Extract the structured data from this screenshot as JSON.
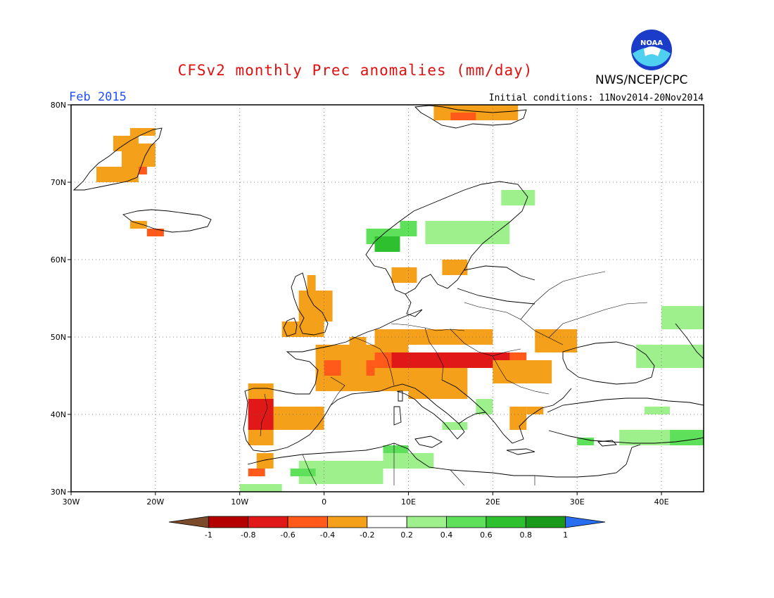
{
  "title": "CFSv2 monthly Prec anomalies (mm/day)",
  "valid_month": "Feb 2015",
  "initial_conditions": "Initial conditions: 11Nov2014-20Nov2014",
  "organization": "NWS/NCEP/CPC",
  "logo_text": "NOAA",
  "map": {
    "lon_range": [
      -30,
      45
    ],
    "lat_range": [
      30,
      80
    ],
    "lat_ticks": [
      {
        "value": 80,
        "label": "80N"
      },
      {
        "value": 70,
        "label": "70N"
      },
      {
        "value": 60,
        "label": "60N"
      },
      {
        "value": 50,
        "label": "50N"
      },
      {
        "value": 40,
        "label": "40N"
      },
      {
        "value": 30,
        "label": "30N"
      }
    ],
    "lon_ticks": [
      {
        "value": -30,
        "label": "30W"
      },
      {
        "value": -20,
        "label": "20W"
      },
      {
        "value": -10,
        "label": "10W"
      },
      {
        "value": 0,
        "label": "0"
      },
      {
        "value": 10,
        "label": "10E"
      },
      {
        "value": 20,
        "label": "20E"
      },
      {
        "value": 30,
        "label": "30E"
      },
      {
        "value": 40,
        "label": "40E"
      }
    ],
    "grid_lines": true
  },
  "colorbar": {
    "labels": [
      "-1",
      "-0.8",
      "-0.6",
      "-0.4",
      "-0.2",
      "0.2",
      "0.4",
      "0.6",
      "0.8",
      "1"
    ],
    "colors": [
      "#7a4a2a",
      "#b40000",
      "#e01818",
      "#ff5a1a",
      "#f5a01a",
      "#ffffff",
      "#9ef08c",
      "#5ee05a",
      "#2ec02e",
      "#1a9a1a",
      "#2a6ef0"
    ]
  },
  "colors": {
    "neg_02_04": "#f5a01a",
    "neg_04_06": "#ff5a1a",
    "neg_06_08": "#e01818",
    "neg_08_1": "#b40000",
    "pos_02_04": "#9ef08c",
    "pos_04_06": "#5ee05a",
    "pos_06_08": "#2ec02e"
  },
  "anomaly_regions": [
    {
      "level": "neg_02_04",
      "cells": [
        [
          -24,
          72,
          4,
          3
        ],
        [
          -25,
          74,
          3,
          2
        ],
        [
          -27,
          70,
          5,
          2
        ],
        [
          -23,
          64,
          2,
          1
        ],
        [
          -21,
          63,
          2,
          1
        ],
        [
          -23,
          76,
          3,
          1
        ]
      ]
    },
    {
      "level": "neg_04_06",
      "cells": [
        [
          -22,
          71,
          1,
          1
        ],
        [
          -21,
          63,
          2,
          1
        ]
      ]
    },
    {
      "level": "neg_02_04",
      "cells": [
        [
          13,
          78,
          10,
          2
        ]
      ]
    },
    {
      "level": "neg_04_06",
      "cells": [
        [
          15,
          78,
          3,
          1
        ]
      ]
    },
    {
      "level": "neg_02_04",
      "cells": [
        [
          -3,
          52,
          4,
          4
        ],
        [
          -5,
          50,
          5,
          2
        ],
        [
          -2,
          56,
          1,
          2
        ]
      ]
    },
    {
      "level": "neg_02_04",
      "cells": [
        [
          8,
          57,
          3,
          2
        ],
        [
          14,
          58,
          3,
          2
        ]
      ]
    },
    {
      "level": "neg_02_04",
      "cells": [
        [
          -1,
          43,
          11,
          6
        ],
        [
          6,
          49,
          14,
          2
        ],
        [
          3,
          48,
          2,
          2
        ]
      ]
    },
    {
      "level": "neg_04_06",
      "cells": [
        [
          0,
          45,
          2,
          2
        ],
        [
          5,
          45,
          1,
          2
        ]
      ]
    },
    {
      "level": "neg_04_06",
      "cells": [
        [
          6,
          46,
          18,
          2
        ]
      ]
    },
    {
      "level": "neg_06_08",
      "cells": [
        [
          8,
          46,
          14,
          2
        ]
      ]
    },
    {
      "level": "neg_02_04",
      "cells": [
        [
          10,
          42,
          7,
          4
        ],
        [
          20,
          44,
          7,
          3
        ],
        [
          25,
          48,
          5,
          3
        ]
      ]
    },
    {
      "level": "neg_02_04",
      "cells": [
        [
          -9,
          36,
          3,
          8
        ],
        [
          -6,
          38,
          6,
          3
        ],
        [
          -8,
          33,
          2,
          2
        ]
      ]
    },
    {
      "level": "neg_06_08",
      "cells": [
        [
          -9,
          38,
          3,
          4
        ]
      ]
    },
    {
      "level": "neg_04_06",
      "cells": [
        [
          -9,
          32,
          2,
          1
        ]
      ]
    },
    {
      "level": "neg_02_04",
      "cells": [
        [
          22,
          38,
          2,
          3
        ],
        [
          24,
          40,
          2,
          1
        ]
      ]
    },
    {
      "level": "pos_02_04",
      "cells": [
        [
          12,
          62,
          10,
          3
        ],
        [
          21,
          67,
          4,
          2
        ],
        [
          -10,
          30,
          5,
          1
        ],
        [
          -3,
          31,
          10,
          3
        ],
        [
          7,
          33,
          6,
          2
        ]
      ]
    },
    {
      "level": "pos_04_06",
      "cells": [
        [
          5,
          62,
          4,
          2
        ],
        [
          9,
          63,
          2,
          2
        ],
        [
          -4,
          32,
          3,
          1
        ],
        [
          7,
          35,
          3,
          1
        ]
      ]
    },
    {
      "level": "pos_06_08",
      "cells": [
        [
          6,
          61,
          3,
          2
        ]
      ]
    },
    {
      "level": "pos_02_04",
      "cells": [
        [
          37,
          46,
          8,
          3
        ],
        [
          40,
          51,
          5,
          3
        ],
        [
          35,
          36,
          10,
          2
        ],
        [
          38,
          40,
          3,
          1
        ],
        [
          14,
          38,
          3,
          1
        ],
        [
          18,
          40,
          2,
          2
        ]
      ]
    },
    {
      "level": "pos_04_06",
      "cells": [
        [
          41,
          36,
          4,
          2
        ],
        [
          30,
          36,
          2,
          1
        ]
      ]
    }
  ]
}
